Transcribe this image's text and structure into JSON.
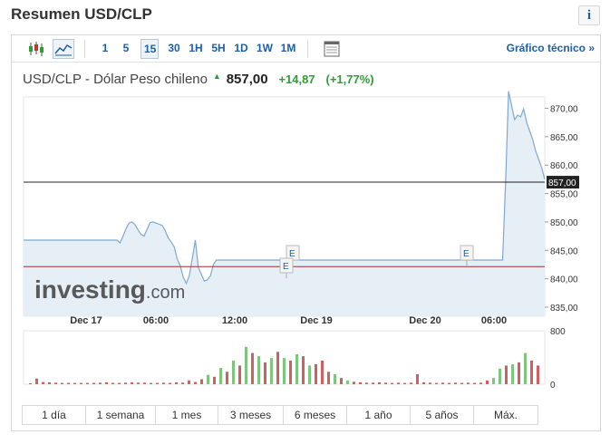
{
  "header": {
    "title": "Resumen USD/CLP",
    "info_icon": "info-icon"
  },
  "toolbar": {
    "chart_type_icons": [
      "candlestick-chart-icon",
      "area-chart-icon"
    ],
    "intervals": [
      "1",
      "5",
      "15",
      "30",
      "1H",
      "5H",
      "1D",
      "1W",
      "1M"
    ],
    "active_interval": "15",
    "table_icon": "table-view-icon",
    "tech_link": "Gráfico técnico »"
  },
  "quote": {
    "name": "USD/CLP - Dólar Peso chileno",
    "arrow": "▲",
    "price": "857,00",
    "change": "+14,87",
    "change_pct": "(+1,77%)",
    "up_color": "#2e9d35"
  },
  "chart_data": {
    "type": "area",
    "y_ticks": [
      "870,00",
      "865,00",
      "860,00",
      "855,00",
      "850,00",
      "845,00",
      "840,00",
      "835,00"
    ],
    "ylim": [
      835,
      872
    ],
    "x_ticks": [
      "Dec 17",
      "06:00",
      "12:00",
      "Dec 19",
      "Dec 20",
      "06:00"
    ],
    "current_price_label": "857,00",
    "current_price": 857.0,
    "reference_price": 842.13,
    "event_markers": [
      "E",
      "E",
      "E"
    ],
    "watermark": {
      "brand": "investing",
      "suffix": ".com"
    },
    "volume_axis": [
      "800",
      "0"
    ],
    "series": [
      {
        "values": [
          846.8,
          846.8,
          846.8,
          846.8,
          846.8,
          846.8,
          846.8,
          846.8,
          846.8,
          846.8,
          846.8,
          846.8,
          846.8,
          846.8,
          846.8,
          846.8,
          846.8,
          846.8,
          846.8,
          846.8,
          846.8,
          846.8,
          846.8,
          846.8,
          846.8,
          846.8,
          846.8,
          846.8,
          846.8,
          846.8,
          846.8,
          846.8,
          846.3,
          847.5,
          848.8,
          849.8,
          850.0,
          849.5,
          848.6,
          847.8,
          847.5,
          848.7,
          849.9,
          850.0,
          849.8,
          849.6,
          849.4,
          848.5,
          847.2,
          846.5,
          845.6,
          843.5,
          842.3,
          840.3,
          839.2,
          840.5,
          843.5,
          846.8,
          842.0,
          840.8,
          839.6,
          839.8,
          840.5,
          842.5,
          843.3,
          843.3,
          843.3,
          843.3,
          843.3,
          843.3,
          843.3,
          843.3,
          843.3,
          843.3,
          843.3,
          843.3,
          843.3,
          843.3,
          843.3,
          843.3,
          843.3,
          843.3,
          843.3,
          843.3,
          843.3,
          843.3,
          843.3,
          843.3,
          843.3,
          843.3,
          843.3,
          843.3,
          843.3,
          843.3,
          843.3,
          843.3,
          843.3,
          843.3,
          843.3,
          843.3,
          843.3,
          843.3,
          843.3,
          843.3,
          843.3,
          843.3,
          843.3,
          843.3,
          843.3,
          843.3,
          843.3,
          843.3,
          843.3,
          843.3,
          843.3,
          843.3,
          843.3,
          843.3,
          843.3,
          843.3,
          843.3,
          843.3,
          843.3,
          843.3,
          843.3,
          843.3,
          843.3,
          843.3,
          843.3,
          843.3,
          843.3,
          843.3,
          843.3,
          843.3,
          843.3,
          843.3,
          843.3,
          843.3,
          843.3,
          843.3,
          843.3,
          843.3,
          843.3,
          843.3,
          843.3,
          843.3,
          843.3,
          843.3,
          843.3,
          843.3,
          843.3,
          843.3,
          843.3,
          843.3,
          843.3,
          843.3,
          843.3,
          843.3,
          843.3,
          843.3,
          857.0,
          873.0,
          870.5,
          868.0,
          868.8,
          868.5,
          869.9,
          867.5,
          866.0,
          864.5,
          862.5,
          861.0,
          859.5,
          857.5
        ]
      }
    ],
    "volume": [
      {
        "v": 12,
        "up": false
      },
      {
        "v": 90,
        "up": false
      },
      {
        "v": 35,
        "up": false
      },
      {
        "v": 30,
        "up": false
      },
      {
        "v": 25,
        "up": false
      },
      {
        "v": 20,
        "up": false
      },
      {
        "v": 22,
        "up": false
      },
      {
        "v": 20,
        "up": false
      },
      {
        "v": 20,
        "up": false
      },
      {
        "v": 20,
        "up": false
      },
      {
        "v": 22,
        "up": false
      },
      {
        "v": 25,
        "up": false
      },
      {
        "v": 30,
        "up": false
      },
      {
        "v": 22,
        "up": false
      },
      {
        "v": 20,
        "up": false
      },
      {
        "v": 25,
        "up": false
      },
      {
        "v": 30,
        "up": false
      },
      {
        "v": 25,
        "up": false
      },
      {
        "v": 25,
        "up": false
      },
      {
        "v": 20,
        "up": false
      },
      {
        "v": 20,
        "up": false
      },
      {
        "v": 25,
        "up": false
      },
      {
        "v": 20,
        "up": false
      },
      {
        "v": 30,
        "up": false
      },
      {
        "v": 25,
        "up": false
      },
      {
        "v": 60,
        "up": false
      },
      {
        "v": 35,
        "up": false
      },
      {
        "v": 80,
        "up": false
      },
      {
        "v": 150,
        "up": true
      },
      {
        "v": 120,
        "up": false
      },
      {
        "v": 260,
        "up": true
      },
      {
        "v": 200,
        "up": false
      },
      {
        "v": 380,
        "up": true
      },
      {
        "v": 300,
        "up": false
      },
      {
        "v": 600,
        "up": true
      },
      {
        "v": 500,
        "up": false
      },
      {
        "v": 450,
        "up": true
      },
      {
        "v": 350,
        "up": false
      },
      {
        "v": 420,
        "up": true
      },
      {
        "v": 520,
        "up": false
      },
      {
        "v": 420,
        "up": true
      },
      {
        "v": 380,
        "up": false
      },
      {
        "v": 480,
        "up": true
      },
      {
        "v": 450,
        "up": false
      },
      {
        "v": 300,
        "up": true
      },
      {
        "v": 320,
        "up": false
      },
      {
        "v": 380,
        "up": false
      },
      {
        "v": 200,
        "up": false
      },
      {
        "v": 160,
        "up": true
      },
      {
        "v": 100,
        "up": false
      },
      {
        "v": 60,
        "up": true
      },
      {
        "v": 40,
        "up": false
      },
      {
        "v": 30,
        "up": false
      },
      {
        "v": 25,
        "up": false
      },
      {
        "v": 25,
        "up": false
      },
      {
        "v": 30,
        "up": false
      },
      {
        "v": 25,
        "up": false
      },
      {
        "v": 20,
        "up": false
      },
      {
        "v": 25,
        "up": false
      },
      {
        "v": 20,
        "up": false
      },
      {
        "v": 25,
        "up": false
      },
      {
        "v": 160,
        "up": false
      },
      {
        "v": 30,
        "up": false
      },
      {
        "v": 25,
        "up": false
      },
      {
        "v": 20,
        "up": false
      },
      {
        "v": 25,
        "up": false
      },
      {
        "v": 20,
        "up": false
      },
      {
        "v": 25,
        "up": false
      },
      {
        "v": 20,
        "up": false
      },
      {
        "v": 25,
        "up": false
      },
      {
        "v": 20,
        "up": false
      },
      {
        "v": 25,
        "up": false
      },
      {
        "v": 60,
        "up": false
      },
      {
        "v": 100,
        "up": true
      },
      {
        "v": 250,
        "up": true
      },
      {
        "v": 300,
        "up": false
      },
      {
        "v": 320,
        "up": true
      },
      {
        "v": 350,
        "up": false
      },
      {
        "v": 500,
        "up": true
      },
      {
        "v": 380,
        "up": false
      },
      {
        "v": 300,
        "up": false
      }
    ]
  },
  "ranges": [
    "1 día",
    "1 semana",
    "1 mes",
    "3 meses",
    "6 meses",
    "1 año",
    "5 años",
    "Máx."
  ]
}
